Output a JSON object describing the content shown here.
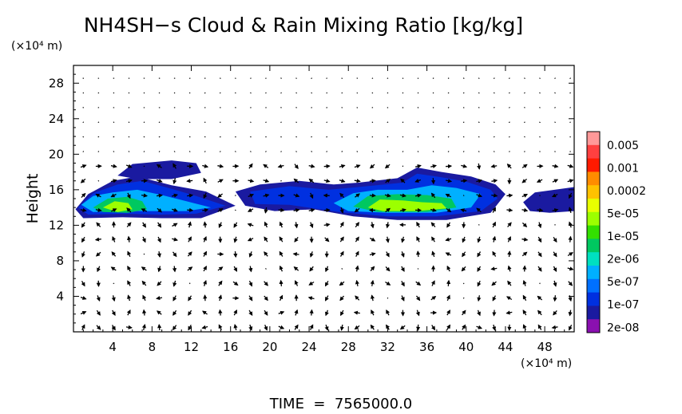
{
  "chart_data": {
    "type": "heatmap",
    "title": "NH4SH−s Cloud & Rain Mixing Ratio [kg/kg]",
    "ylabel": "Height",
    "y_units": "(×10⁴ m)",
    "x_units": "(×10⁴ m)",
    "footer": "TIME  =  7565000.0",
    "xlim": [
      0,
      51
    ],
    "ylim": [
      0,
      30
    ],
    "x_ticks": [
      4,
      8,
      12,
      16,
      20,
      24,
      28,
      32,
      36,
      40,
      44,
      48
    ],
    "y_ticks": [
      4,
      8,
      12,
      16,
      20,
      24,
      28
    ],
    "colorbar": {
      "labels": [
        "0.005",
        "0.001",
        "0.0002",
        "5e-05",
        "1e-05",
        "2e-06",
        "5e-07",
        "1e-07",
        "2e-08"
      ],
      "colors": [
        "#ff9999",
        "#ff4040",
        "#ff1a00",
        "#ff8c00",
        "#ffc200",
        "#e8ff00",
        "#9cff00",
        "#33e000",
        "#00c860",
        "#00e0c0",
        "#00b0ff",
        "#0070ff",
        "#0030e0",
        "#1a1aa0",
        "#8a10b0"
      ]
    },
    "cloud_regions": [
      {
        "level": 13,
        "polygon": [
          [
            0.2,
            13.8
          ],
          [
            1.5,
            15.5
          ],
          [
            4.0,
            17.0
          ],
          [
            6.5,
            17.5
          ],
          [
            10.0,
            16.5
          ],
          [
            13.5,
            15.8
          ],
          [
            16.5,
            14.2
          ],
          [
            13.0,
            12.8
          ],
          [
            9.0,
            12.8
          ],
          [
            5.0,
            12.9
          ],
          [
            1.0,
            12.8
          ]
        ]
      },
      {
        "level": 13,
        "polygon": [
          [
            4.5,
            17.6
          ],
          [
            6.0,
            18.9
          ],
          [
            10.0,
            19.3
          ],
          [
            12.5,
            19.0
          ],
          [
            13.0,
            17.9
          ],
          [
            10.0,
            17.2
          ],
          [
            6.5,
            17.2
          ]
        ]
      },
      {
        "level": 13,
        "polygon": [
          [
            16.5,
            15.8
          ],
          [
            19.0,
            16.6
          ],
          [
            23.0,
            17.0
          ],
          [
            26.5,
            16.6
          ],
          [
            29.0,
            16.8
          ],
          [
            33.0,
            17.3
          ],
          [
            35.0,
            18.5
          ],
          [
            37.5,
            18.0
          ],
          [
            40.5,
            17.5
          ],
          [
            43.0,
            16.6
          ],
          [
            44.0,
            15.5
          ],
          [
            42.5,
            13.4
          ],
          [
            38.0,
            12.6
          ],
          [
            33.0,
            12.6
          ],
          [
            28.5,
            13.0
          ],
          [
            24.5,
            13.8
          ],
          [
            20.5,
            13.6
          ],
          [
            17.5,
            14.2
          ]
        ]
      },
      {
        "level": 13,
        "polygon": [
          [
            45.8,
            14.6
          ],
          [
            47.0,
            15.7
          ],
          [
            49.0,
            16.0
          ],
          [
            51.0,
            16.3
          ],
          [
            51.0,
            13.6
          ],
          [
            48.5,
            13.4
          ],
          [
            46.5,
            13.6
          ]
        ]
      },
      {
        "level": 12,
        "polygon": [
          [
            0.5,
            14.0
          ],
          [
            2.0,
            15.6
          ],
          [
            4.5,
            16.6
          ],
          [
            7.0,
            17.0
          ],
          [
            10.0,
            16.1
          ],
          [
            12.5,
            15.3
          ],
          [
            15.5,
            14.2
          ],
          [
            12.5,
            13.3
          ],
          [
            9.0,
            13.2
          ],
          [
            5.0,
            13.3
          ],
          [
            1.5,
            13.2
          ]
        ]
      },
      {
        "level": 12,
        "polygon": [
          [
            18.0,
            15.8
          ],
          [
            22.0,
            16.4
          ],
          [
            26.0,
            16.0
          ],
          [
            29.0,
            16.3
          ],
          [
            33.5,
            16.8
          ],
          [
            35.0,
            17.8
          ],
          [
            37.5,
            17.4
          ],
          [
            40.0,
            16.9
          ],
          [
            42.5,
            16.0
          ],
          [
            43.2,
            15.0
          ],
          [
            41.5,
            13.6
          ],
          [
            37.0,
            13.0
          ],
          [
            32.0,
            13.0
          ],
          [
            27.0,
            13.5
          ],
          [
            22.0,
            14.3
          ],
          [
            18.5,
            14.4
          ]
        ]
      },
      {
        "level": 10,
        "polygon": [
          [
            0.8,
            14.3
          ],
          [
            2.0,
            15.3
          ],
          [
            4.0,
            15.7
          ],
          [
            6.5,
            16.0
          ],
          [
            9.0,
            15.4
          ],
          [
            11.5,
            14.7
          ],
          [
            14.0,
            14.0
          ],
          [
            11.5,
            13.6
          ],
          [
            8.0,
            13.6
          ],
          [
            5.0,
            13.6
          ],
          [
            2.0,
            13.5
          ]
        ]
      },
      {
        "level": 10,
        "polygon": [
          [
            26.5,
            14.5
          ],
          [
            28.5,
            15.6
          ],
          [
            31.0,
            16.0
          ],
          [
            34.0,
            16.0
          ],
          [
            36.5,
            16.5
          ],
          [
            39.0,
            16.2
          ],
          [
            41.5,
            15.5
          ],
          [
            40.5,
            14.0
          ],
          [
            37.0,
            13.4
          ],
          [
            32.0,
            13.4
          ],
          [
            28.0,
            13.6
          ]
        ]
      },
      {
        "level": 8,
        "polygon": [
          [
            2.0,
            14.0
          ],
          [
            3.5,
            15.0
          ],
          [
            5.5,
            15.2
          ],
          [
            7.0,
            14.7
          ],
          [
            7.5,
            13.8
          ],
          [
            5.5,
            13.4
          ],
          [
            3.0,
            13.5
          ]
        ]
      },
      {
        "level": 8,
        "polygon": [
          [
            28.5,
            14.1
          ],
          [
            30.0,
            15.3
          ],
          [
            33.0,
            15.5
          ],
          [
            36.0,
            15.4
          ],
          [
            38.5,
            15.0
          ],
          [
            39.0,
            14.0
          ],
          [
            36.0,
            13.5
          ],
          [
            31.0,
            13.5
          ]
        ]
      },
      {
        "level": 6,
        "polygon": [
          [
            3.0,
            14.0
          ],
          [
            4.2,
            14.7
          ],
          [
            5.6,
            14.5
          ],
          [
            6.0,
            13.8
          ],
          [
            4.5,
            13.5
          ]
        ]
      },
      {
        "level": 6,
        "polygon": [
          [
            30.0,
            14.0
          ],
          [
            31.2,
            14.9
          ],
          [
            33.5,
            14.8
          ],
          [
            35.5,
            14.6
          ],
          [
            37.5,
            14.5
          ],
          [
            38.0,
            13.9
          ],
          [
            35.0,
            13.6
          ],
          [
            31.5,
            13.6
          ]
        ]
      }
    ],
    "wind_field": "quiver"
  }
}
